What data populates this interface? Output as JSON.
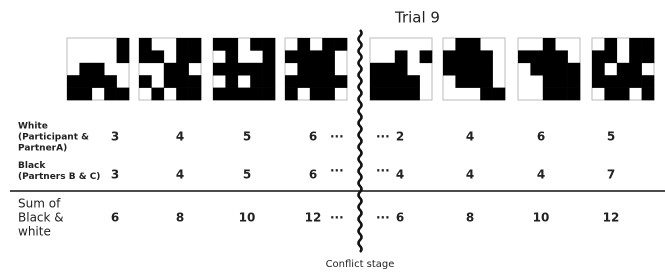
{
  "title": "Trial 9",
  "ellipsis": "···",
  "rows": [
    {
      "label": [
        "White",
        "(Participant &",
        "PartnerA)"
      ],
      "before": [
        3,
        4,
        5,
        6
      ],
      "after": [
        2,
        4,
        6,
        5
      ]
    },
    {
      "label": [
        "Black",
        "(Partners B & C)"
      ],
      "before": [
        3,
        4,
        5,
        6
      ],
      "after": [
        4,
        4,
        4,
        7
      ]
    },
    {
      "label": [
        "Sum of",
        "Black &",
        "white"
      ],
      "before": [
        6,
        8,
        10,
        12
      ],
      "after": [
        6,
        8,
        10,
        12
      ]
    }
  ],
  "caption": "Conflict stage"
}
